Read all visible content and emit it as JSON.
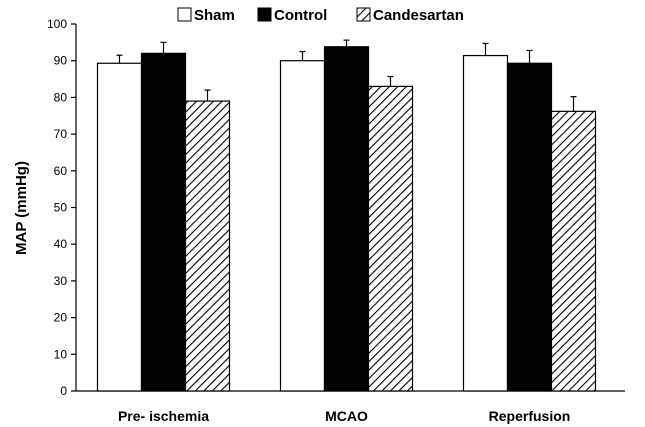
{
  "chart_data": {
    "type": "bar",
    "title": "",
    "xlabel": "",
    "ylabel": "MAP (mmHg)",
    "ylim": [
      0,
      100
    ],
    "yticks": [
      0,
      10,
      20,
      30,
      40,
      50,
      60,
      70,
      80,
      90,
      100
    ],
    "categories": [
      "Pre- ischemia",
      "MCAO",
      "Reperfusion"
    ],
    "legend_position": "top-center",
    "grid": false,
    "series": [
      {
        "name": "Sham",
        "fill": "white",
        "values": [
          89.3,
          90.0,
          91.4
        ],
        "errors": [
          2.2,
          2.5,
          3.3
        ]
      },
      {
        "name": "Control",
        "fill": "black",
        "values": [
          92.0,
          93.8,
          89.3
        ],
        "errors": [
          3.0,
          1.8,
          3.5
        ]
      },
      {
        "name": "Candesartan",
        "fill": "hatched",
        "values": [
          79.0,
          83.0,
          76.2
        ],
        "errors": [
          3.0,
          2.7,
          4.0
        ]
      }
    ]
  }
}
